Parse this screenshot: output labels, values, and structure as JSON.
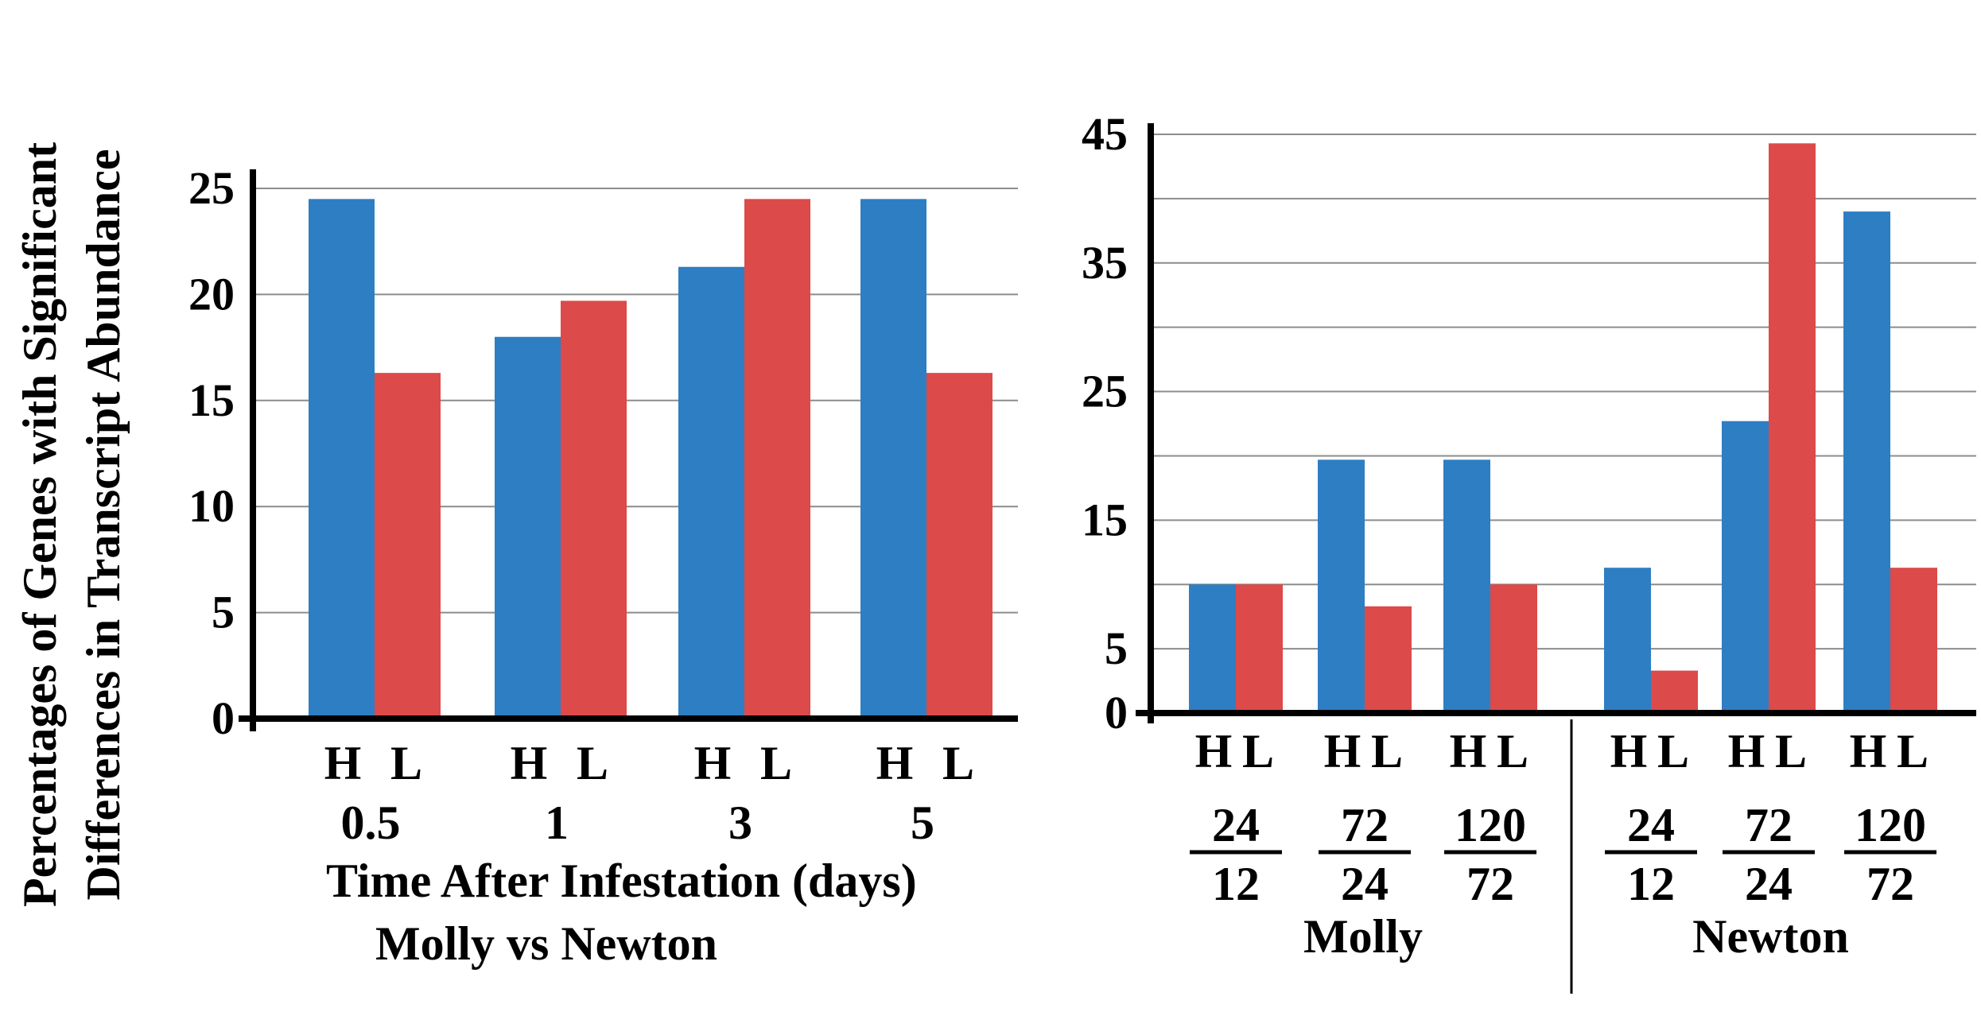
{
  "y_axis_title": [
    "Percentages of Genes with Significant",
    "Differences in Transcript Abundance"
  ],
  "colors": {
    "H": "#2e7ec3",
    "L": "#dc4a4a",
    "grid": "#8c8c8c",
    "axis": "#000000"
  },
  "chart_data": [
    {
      "type": "bar",
      "x_title": "Time After Infestation (days)",
      "subtitle": "Molly  vs  Newton",
      "ylim": [
        0,
        25
      ],
      "yticks": [
        0,
        5,
        10,
        15,
        20,
        25
      ],
      "categories": [
        "0.5",
        "1",
        "3",
        "5"
      ],
      "bar_labels": [
        "H",
        "L"
      ],
      "series": [
        {
          "name": "H",
          "values": [
            24.5,
            18,
            21.3,
            24.5
          ]
        },
        {
          "name": "L",
          "values": [
            16.3,
            19.7,
            24.5,
            16.3
          ]
        }
      ]
    },
    {
      "type": "bar",
      "ylim": [
        0,
        45
      ],
      "yticks": [
        0,
        5,
        15,
        25,
        35,
        45
      ],
      "gridlines": [
        0,
        5,
        10,
        15,
        20,
        25,
        30,
        35,
        40,
        45
      ],
      "bar_labels": [
        "H",
        "L"
      ],
      "groups": [
        {
          "name": "Molly",
          "ratios": [
            [
              "24",
              "12"
            ],
            [
              "72",
              "24"
            ],
            [
              "120",
              "72"
            ]
          ]
        },
        {
          "name": "Newton",
          "ratios": [
            [
              "24",
              "12"
            ],
            [
              "72",
              "24"
            ],
            [
              "120",
              "72"
            ]
          ]
        }
      ],
      "series": [
        {
          "name": "H",
          "values": [
            10,
            19.7,
            19.7,
            11.3,
            22.7,
            39
          ]
        },
        {
          "name": "L",
          "values": [
            10,
            8.3,
            10,
            3.3,
            44.3,
            11.3
          ]
        }
      ]
    }
  ]
}
